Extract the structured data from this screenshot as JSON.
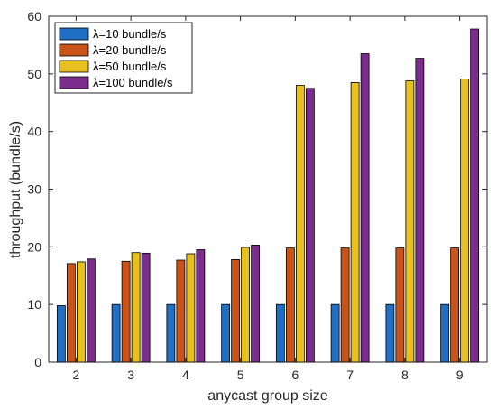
{
  "chart_data": {
    "type": "bar",
    "xlabel": "anycast group size",
    "ylabel": "throughput (bundle/s)",
    "categories": [
      "2",
      "3",
      "4",
      "5",
      "6",
      "7",
      "8",
      "9"
    ],
    "ylim": [
      0,
      60
    ],
    "yticks": [
      0,
      10,
      20,
      30,
      40,
      50,
      60
    ],
    "grid": false,
    "legend_position": "top-left",
    "series": [
      {
        "name": "λ=10 bundle/s",
        "color": "#1f6fc5",
        "values": [
          9.8,
          10.0,
          10.0,
          10.0,
          10.0,
          10.0,
          10.0,
          10.0
        ]
      },
      {
        "name": "λ=20 bundle/s",
        "color": "#c8541a",
        "values": [
          17.1,
          17.5,
          17.7,
          17.8,
          19.8,
          19.8,
          19.8,
          19.8
        ]
      },
      {
        "name": "λ=50 bundle/s",
        "color": "#e8c020",
        "values": [
          17.4,
          19.0,
          18.8,
          19.9,
          48.0,
          48.5,
          48.8,
          49.1
        ]
      },
      {
        "name": "λ=100 bundle/s",
        "color": "#7b2d8e",
        "values": [
          17.9,
          18.9,
          19.5,
          20.3,
          47.5,
          53.5,
          52.7,
          57.8
        ]
      }
    ]
  }
}
